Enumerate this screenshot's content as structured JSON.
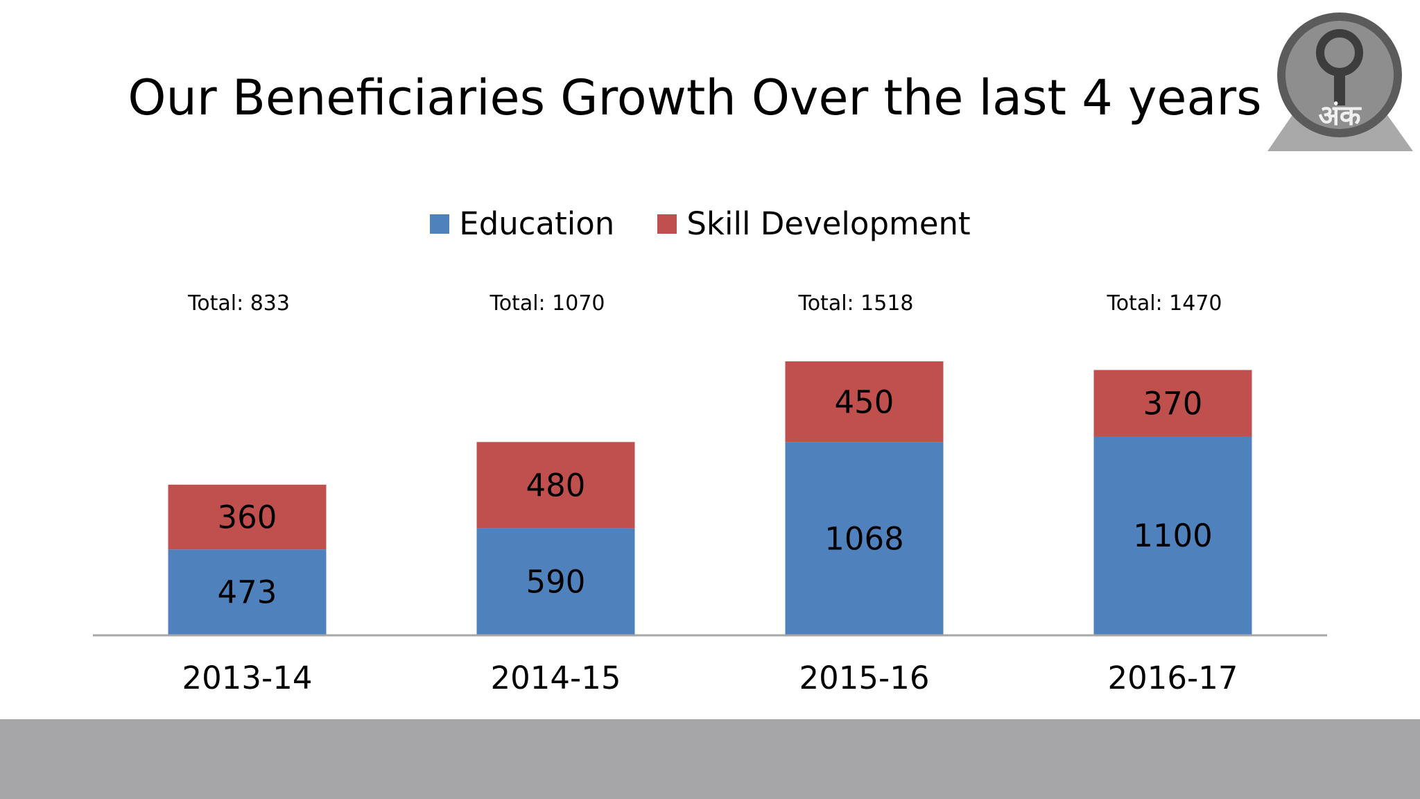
{
  "slide": {
    "title": "Our Beneficiaries Growth Over the last 4 years"
  },
  "logo": {
    "text": "अंक"
  },
  "colors": {
    "education": "#4f81bd",
    "skill": "#c0504d",
    "axis": "#a6a6a6",
    "footer": "#a6a6a8"
  },
  "chart_data": {
    "type": "bar",
    "stacked": true,
    "categories": [
      "2013-14",
      "2014-15",
      "2015-16",
      "2016-17"
    ],
    "series": [
      {
        "name": "Education",
        "values": [
          473,
          590,
          1068,
          1100
        ]
      },
      {
        "name": "Skill Development",
        "values": [
          360,
          480,
          450,
          370
        ]
      }
    ],
    "totals": [
      "Total: 833",
      "Total: 1070",
      "Total: 1518",
      "Total: 1470"
    ],
    "legend": "top",
    "grid": false,
    "ylim": [
      0,
      1518
    ]
  }
}
